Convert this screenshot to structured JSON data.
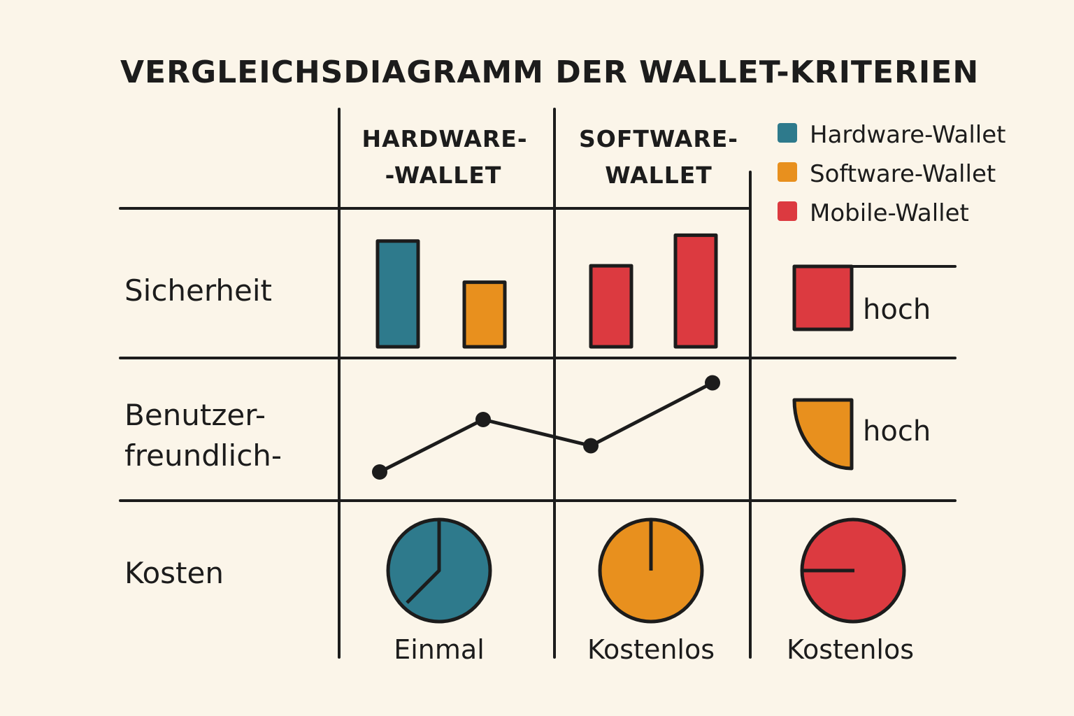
{
  "title": "VERGLEICHSDIAGRAMM DER WALLET-KRITERIEN",
  "columns": [
    {
      "line1": "HARDWARE-",
      "line2": "-WALLET"
    },
    {
      "line1": "SOFTWARE-",
      "line2": "WALLET"
    }
  ],
  "rows": {
    "security": "Sicherheit",
    "usability_line1": "Benutzer-",
    "usability_line2": "freundlich-",
    "cost": "Kosten"
  },
  "legend": [
    {
      "label": "Hardware-Wallet",
      "color": "#2e7a8c"
    },
    {
      "label": "Software-Wallet",
      "color": "#e8901e"
    },
    {
      "label": "Mobile-Wallet",
      "color": "#dc3a40"
    }
  ],
  "notes": {
    "security": "hoch",
    "usability": "hoch"
  },
  "cost_labels": [
    "Einmal",
    "Kostenlos",
    "Kostenlos"
  ],
  "chart_data": {
    "type": "bar",
    "title": "VERGLEICHSDIAGRAMM DER WALLET-KRITERIEN",
    "security_bars": [
      {
        "column": 0,
        "color": "#2e7a8c",
        "value": 0.9
      },
      {
        "column": 0,
        "color": "#e8901e",
        "value": 0.55
      },
      {
        "column": 1,
        "color": "#dc3a40",
        "value": 0.69
      },
      {
        "column": 1,
        "color": "#dc3a40",
        "value": 0.95
      }
    ],
    "usability_line": {
      "values": [
        0.1,
        0.6,
        0.35,
        0.95
      ]
    },
    "cost_pies": [
      {
        "color": "#2e7a8c",
        "label": "Einmal"
      },
      {
        "color": "#e8901e",
        "label": "Kostenlos"
      },
      {
        "color": "#dc3a40",
        "label": "Kostenlos"
      }
    ]
  }
}
